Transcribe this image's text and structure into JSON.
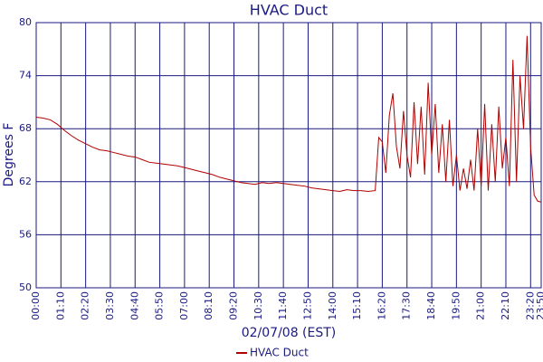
{
  "chart_data": {
    "type": "line",
    "title": "HVAC Duct",
    "x_label": "02/07/08 (EST)",
    "y_label": "Degrees F",
    "x": [
      "00:00",
      "00:20",
      "00:40",
      "01:00",
      "01:20",
      "01:40",
      "02:00",
      "02:20",
      "02:40",
      "03:00",
      "03:20",
      "03:40",
      "04:00",
      "04:20",
      "04:40",
      "05:00",
      "05:20",
      "05:40",
      "06:00",
      "06:20",
      "06:40",
      "07:00",
      "07:20",
      "07:40",
      "08:00",
      "08:20",
      "08:40",
      "09:00",
      "09:20",
      "09:40",
      "10:00",
      "10:20",
      "10:40",
      "11:00",
      "11:20",
      "11:40",
      "12:00",
      "12:20",
      "12:40",
      "13:00",
      "13:20",
      "13:40",
      "14:00",
      "14:20",
      "14:40",
      "15:00",
      "15:20",
      "15:40",
      "16:00",
      "16:10",
      "16:20",
      "16:30",
      "16:40",
      "16:50",
      "17:00",
      "17:10",
      "17:20",
      "17:30",
      "17:40",
      "17:50",
      "18:00",
      "18:10",
      "18:20",
      "18:30",
      "18:40",
      "18:50",
      "19:00",
      "19:10",
      "19:20",
      "19:30",
      "19:40",
      "19:50",
      "20:00",
      "20:10",
      "20:20",
      "20:30",
      "20:40",
      "20:50",
      "21:00",
      "21:10",
      "21:20",
      "21:30",
      "21:40",
      "21:50",
      "22:00",
      "22:10",
      "22:20",
      "22:30",
      "22:40",
      "22:50",
      "23:00",
      "23:10",
      "23:20",
      "23:30",
      "23:40",
      "23:50"
    ],
    "series": [
      {
        "name": "HVAC Duct",
        "color": "#b00000",
        "values": [
          69.3,
          69.2,
          69.0,
          68.5,
          67.8,
          67.2,
          66.7,
          66.3,
          65.9,
          65.6,
          65.5,
          65.3,
          65.1,
          64.9,
          64.8,
          64.5,
          64.2,
          64.1,
          64.0,
          63.9,
          63.8,
          63.6,
          63.4,
          63.2,
          63.0,
          62.8,
          62.5,
          62.3,
          62.1,
          61.9,
          61.8,
          61.7,
          61.9,
          61.8,
          61.9,
          61.8,
          61.7,
          61.6,
          61.5,
          61.3,
          61.2,
          61.1,
          61.0,
          60.9,
          61.1,
          61.0,
          61.0,
          60.9,
          61.0,
          67.0,
          66.5,
          63.0,
          69.5,
          72.0,
          66.0,
          63.5,
          70.0,
          65.0,
          62.5,
          71.0,
          64.0,
          70.5,
          62.8,
          73.2,
          65.0,
          70.8,
          63.0,
          68.5,
          62.0,
          69.0,
          61.5,
          65.0,
          61.0,
          63.5,
          61.2,
          64.5,
          61.0,
          68.0,
          61.5,
          70.8,
          61.0,
          68.5,
          62.0,
          70.5,
          63.5,
          67.0,
          61.5,
          75.8,
          62.0,
          74.0,
          68.0,
          78.5,
          66.0,
          60.5,
          59.8,
          59.7
        ]
      }
    ],
    "xlim": [
      "00:00",
      "23:50"
    ],
    "xticks": [
      "00:00",
      "01:10",
      "02:20",
      "03:30",
      "04:40",
      "05:50",
      "07:00",
      "08:10",
      "09:20",
      "10:30",
      "11:40",
      "12:50",
      "14:00",
      "15:10",
      "16:20",
      "17:30",
      "18:40",
      "19:50",
      "21:00",
      "22:10",
      "23:20",
      "23:50"
    ],
    "ylim": [
      50,
      80
    ],
    "yticks": [
      50,
      56,
      62,
      68,
      74,
      80
    ],
    "grid": true,
    "legend": "bottom"
  }
}
